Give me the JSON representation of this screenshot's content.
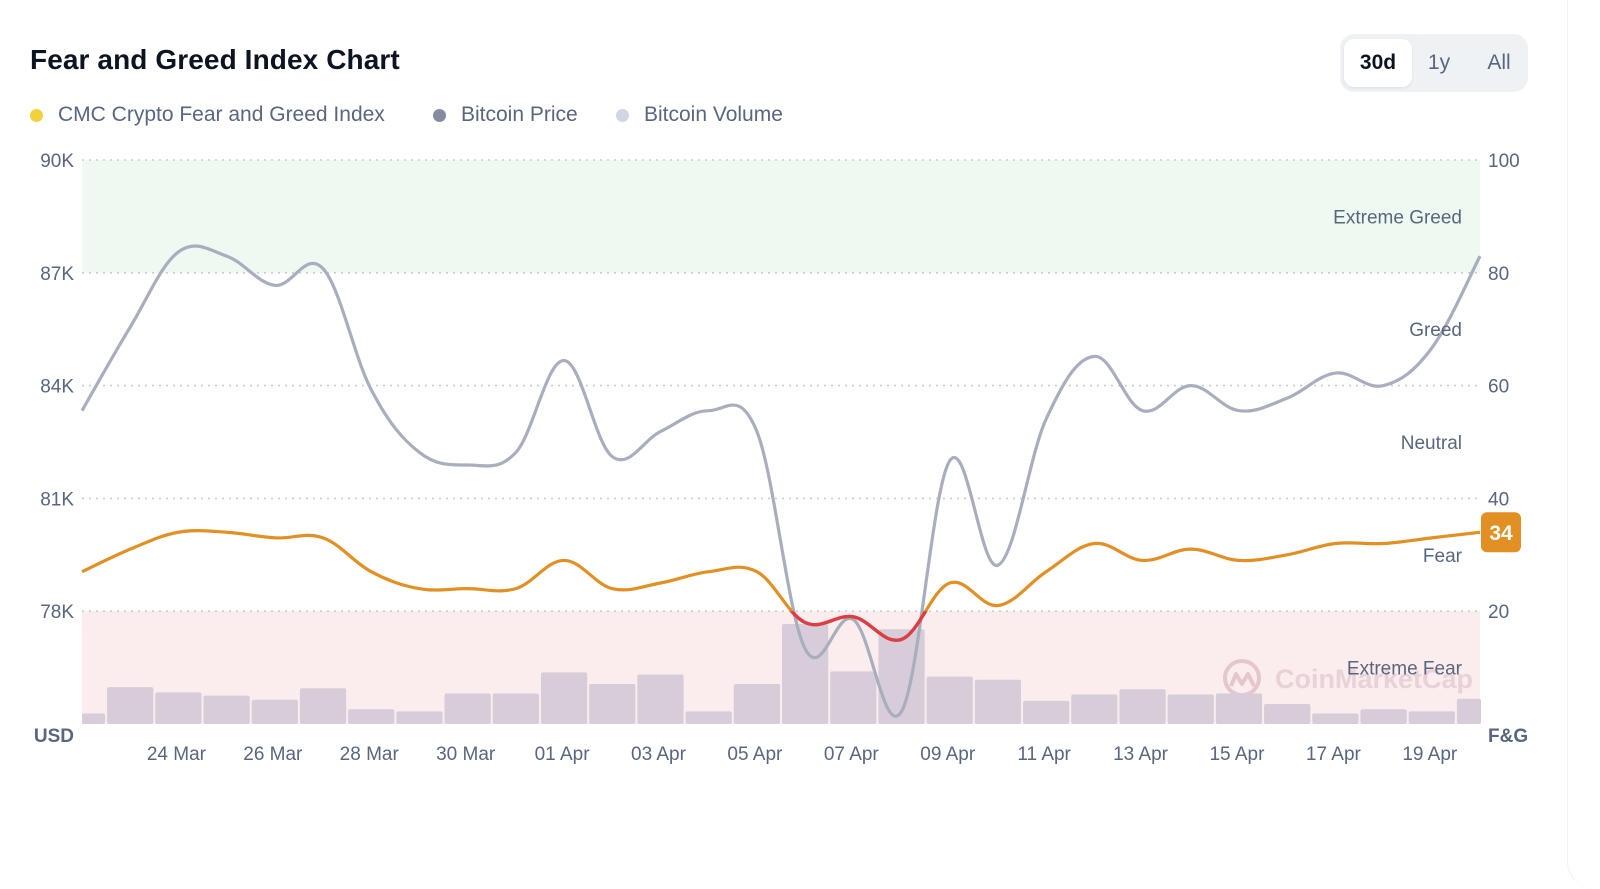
{
  "header": {
    "title": "Fear and Greed Index Chart",
    "ranges": [
      "30d",
      "1y",
      "All"
    ],
    "selected_range": "30d"
  },
  "legend": [
    {
      "label": "CMC Crypto Fear and Greed Index",
      "color": "#f0d33c"
    },
    {
      "label": "Bitcoin Price",
      "color": "#858ca2"
    },
    {
      "label": "Bitcoin Volume",
      "color": "#cfd6e4"
    }
  ],
  "watermark": "CoinMarketCap",
  "colors": {
    "price_line": "#a8aebd",
    "fg_line": "#e28f23",
    "fg_line_extreme_fear": "#dc3e48",
    "volume_bar": "#d6cdd8",
    "extreme_greed_band": "#eef9f2",
    "extreme_fear_band": "#fbeced",
    "badge": "#e28f23",
    "grid": "#c8ccd3"
  },
  "chart_data": {
    "type": "line",
    "x": [
      "22 Mar",
      "23 Mar",
      "24 Mar",
      "25 Mar",
      "26 Mar",
      "27 Mar",
      "28 Mar",
      "29 Mar",
      "30 Mar",
      "31 Mar",
      "01 Apr",
      "02 Apr",
      "03 Apr",
      "04 Apr",
      "05 Apr",
      "06 Apr",
      "07 Apr",
      "08 Apr",
      "09 Apr",
      "10 Apr",
      "11 Apr",
      "12 Apr",
      "13 Apr",
      "14 Apr",
      "15 Apr",
      "16 Apr",
      "17 Apr",
      "18 Apr",
      "19 Apr",
      "20 Apr"
    ],
    "x_tick_labels": [
      "24 Mar",
      "26 Mar",
      "28 Mar",
      "30 Mar",
      "01 Apr",
      "03 Apr",
      "05 Apr",
      "07 Apr",
      "09 Apr",
      "11 Apr",
      "13 Apr",
      "15 Apr",
      "17 Apr",
      "19 Apr"
    ],
    "left_axis": {
      "label": "USD",
      "ticks": [
        "90K",
        "87K",
        "84K",
        "81K",
        "78K"
      ],
      "range": [
        76500,
        90000
      ]
    },
    "right_axis": {
      "label": "F&G",
      "ticks": [
        "100",
        "80",
        "60",
        "40",
        "20"
      ],
      "range": [
        0,
        100
      ]
    },
    "zones": [
      {
        "name": "Extreme Greed",
        "range": [
          80,
          100
        ]
      },
      {
        "name": "Greed",
        "range": [
          60,
          80
        ]
      },
      {
        "name": "Neutral",
        "range": [
          40,
          60
        ]
      },
      {
        "name": "Fear",
        "range": [
          20,
          40
        ]
      },
      {
        "name": "Extreme Fear",
        "range": [
          0,
          20
        ]
      }
    ],
    "current_value": "34",
    "series": [
      {
        "name": "Bitcoin Price",
        "axis": "left",
        "values": [
          84000,
          86000,
          87800,
          87700,
          87000,
          87400,
          84500,
          83000,
          82700,
          83000,
          85200,
          82900,
          83500,
          84000,
          83500,
          78300,
          79000,
          76800,
          82800,
          80300,
          83800,
          85300,
          84000,
          84600,
          84000,
          84300,
          84900,
          84600,
          85500,
          87700
        ]
      },
      {
        "name": "CMC Crypto Fear and Greed Index",
        "axis": "right",
        "values": [
          27,
          31,
          34,
          34,
          33,
          33,
          27,
          24,
          24,
          24,
          29,
          24,
          25,
          27,
          27,
          18,
          19,
          15,
          25,
          21,
          27,
          32,
          29,
          31,
          29,
          30,
          32,
          32,
          33,
          34
        ]
      },
      {
        "name": "Bitcoin Volume",
        "axis": "volume",
        "values": [
          10,
          35,
          30,
          27,
          23,
          34,
          14,
          12,
          29,
          29,
          49,
          38,
          47,
          12,
          38,
          95,
          50,
          90,
          45,
          42,
          22,
          28,
          33,
          28,
          29,
          19,
          10,
          14,
          12,
          24
        ]
      }
    ]
  }
}
